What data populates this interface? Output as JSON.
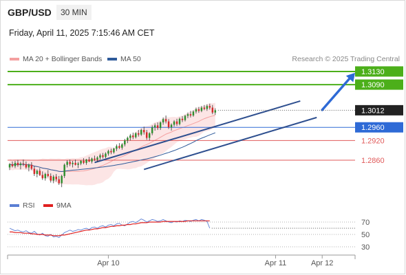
{
  "header": {
    "symbol": "GBP/USD",
    "timeframe": "30 MIN",
    "datetime": "Friday, April 11, 2025 7:15:46 AM CET"
  },
  "legend": {
    "ma_bb": {
      "label": "MA 20 + Bollinger Bands",
      "color": "#f4a0a0"
    },
    "ma50": {
      "label": "MA 50",
      "color": "#2e5a9a"
    },
    "credit": "Research © 2025 Trading Central"
  },
  "rsi_legend": {
    "rsi": {
      "label": "RSI",
      "color": "#5b7fd4"
    },
    "ma9": {
      "label": "9MA",
      "color": "#e02020"
    }
  },
  "chart_data": [
    {
      "type": "candlestick",
      "panel": "price",
      "ylim": [
        1.2745,
        1.3155
      ],
      "x_ticks": [
        {
          "label": "Apr 10",
          "index": 36
        },
        {
          "label": "Apr 11",
          "index": 97
        },
        {
          "label": "Apr 12",
          "index": 114
        }
      ],
      "n_slots": 127,
      "last_price": {
        "label": "1.3012",
        "value": 1.3012,
        "color": "#222222"
      },
      "levels": [
        {
          "label": "1.3130",
          "value": 1.313,
          "color": "#4caf1a",
          "style": "solid"
        },
        {
          "label": "1.3090",
          "value": 1.309,
          "color": "#4caf1a",
          "style": "solid"
        },
        {
          "label": "1.2960",
          "value": 1.296,
          "color": "#2e6ad6",
          "style": "thin"
        },
        {
          "label": "1.2920",
          "value": 1.292,
          "color": "#e05a5a",
          "style": "thin"
        },
        {
          "label": "1.2860",
          "value": 1.286,
          "color": "#e05a5a",
          "style": "thin"
        }
      ],
      "channel": {
        "upper": [
          [
            31,
            1.2853
          ],
          [
            106,
            1.304
          ]
        ],
        "lower": [
          [
            49,
            1.2832
          ],
          [
            112,
            1.299
          ]
        ],
        "color": "#2e4f8f"
      },
      "projection_arrow": {
        "from": [
          114,
          1.3013
        ],
        "to": [
          126,
          1.3126
        ],
        "color": "#2e6ad6"
      },
      "candles": [
        [
          1.2838,
          1.2851,
          1.283,
          1.2848
        ],
        [
          1.2848,
          1.2856,
          1.2838,
          1.2842
        ],
        [
          1.2842,
          1.2858,
          1.2836,
          1.2852
        ],
        [
          1.2852,
          1.2861,
          1.284,
          1.2845
        ],
        [
          1.2845,
          1.2855,
          1.2832,
          1.285
        ],
        [
          1.285,
          1.2862,
          1.2842,
          1.2848
        ],
        [
          1.2848,
          1.2856,
          1.2834,
          1.2838
        ],
        [
          1.2838,
          1.285,
          1.2826,
          1.2846
        ],
        [
          1.2846,
          1.2854,
          1.283,
          1.2834
        ],
        [
          1.2834,
          1.2842,
          1.2812,
          1.2818
        ],
        [
          1.2818,
          1.2832,
          1.2808,
          1.2828
        ],
        [
          1.2828,
          1.2836,
          1.2812,
          1.2815
        ],
        [
          1.2815,
          1.2826,
          1.28,
          1.2805
        ],
        [
          1.2805,
          1.2822,
          1.2798,
          1.2818
        ],
        [
          1.2818,
          1.283,
          1.2808,
          1.2812
        ],
        [
          1.2812,
          1.282,
          1.2792,
          1.2798
        ],
        [
          1.2798,
          1.2815,
          1.279,
          1.281
        ],
        [
          1.281,
          1.2818,
          1.2795,
          1.2802
        ],
        [
          1.2802,
          1.2812,
          1.2785,
          1.279
        ],
        [
          1.279,
          1.2816,
          1.2778,
          1.2812
        ],
        [
          1.2812,
          1.285,
          1.2806,
          1.2846
        ],
        [
          1.2846,
          1.286,
          1.2838,
          1.2855
        ],
        [
          1.2855,
          1.2862,
          1.2842,
          1.2848
        ],
        [
          1.2848,
          1.2858,
          1.2838,
          1.2852
        ],
        [
          1.2852,
          1.2862,
          1.2844,
          1.2846
        ],
        [
          1.2846,
          1.2855,
          1.2836,
          1.285
        ],
        [
          1.285,
          1.286,
          1.2845,
          1.2858
        ],
        [
          1.2858,
          1.2866,
          1.2848,
          1.2852
        ],
        [
          1.2852,
          1.2864,
          1.2846,
          1.2862
        ],
        [
          1.2862,
          1.287,
          1.2854,
          1.2856
        ],
        [
          1.2856,
          1.2868,
          1.285,
          1.2865
        ],
        [
          1.2865,
          1.2874,
          1.2858,
          1.2862
        ],
        [
          1.2862,
          1.2872,
          1.2855,
          1.2868
        ],
        [
          1.2868,
          1.288,
          1.2862,
          1.2875
        ],
        [
          1.2875,
          1.2882,
          1.2865,
          1.287
        ],
        [
          1.287,
          1.2884,
          1.2866,
          1.288
        ],
        [
          1.288,
          1.2892,
          1.2874,
          1.2888
        ],
        [
          1.2888,
          1.2895,
          1.2878,
          1.2884
        ],
        [
          1.2884,
          1.2898,
          1.288,
          1.2895
        ],
        [
          1.2895,
          1.2908,
          1.2888,
          1.2903
        ],
        [
          1.2903,
          1.2912,
          1.2894,
          1.2898
        ],
        [
          1.2898,
          1.2912,
          1.2892,
          1.2908
        ],
        [
          1.2908,
          1.2925,
          1.2902,
          1.292
        ],
        [
          1.292,
          1.2932,
          1.2912,
          1.2928
        ],
        [
          1.2928,
          1.294,
          1.292,
          1.2935
        ],
        [
          1.2935,
          1.2944,
          1.2924,
          1.293
        ],
        [
          1.293,
          1.2945,
          1.2926,
          1.2942
        ],
        [
          1.2942,
          1.2952,
          1.2932,
          1.2938
        ],
        [
          1.2938,
          1.2956,
          1.2934,
          1.2952
        ],
        [
          1.2952,
          1.2962,
          1.2938,
          1.2945
        ],
        [
          1.2945,
          1.2952,
          1.2922,
          1.2928
        ],
        [
          1.2928,
          1.2945,
          1.292,
          1.2942
        ],
        [
          1.2942,
          1.2966,
          1.2936,
          1.296
        ],
        [
          1.296,
          1.2972,
          1.295,
          1.2966
        ],
        [
          1.2966,
          1.2975,
          1.2952,
          1.2958
        ],
        [
          1.2958,
          1.2978,
          1.2952,
          1.2975
        ],
        [
          1.2975,
          1.299,
          1.2968,
          1.2985
        ],
        [
          1.2985,
          1.2996,
          1.2972,
          1.2978
        ],
        [
          1.2978,
          1.2985,
          1.2955,
          1.296
        ],
        [
          1.296,
          1.2972,
          1.295,
          1.2968
        ],
        [
          1.2968,
          1.2982,
          1.2962,
          1.2978
        ],
        [
          1.2978,
          1.2986,
          1.2964,
          1.297
        ],
        [
          1.297,
          1.299,
          1.2966,
          1.2986
        ],
        [
          1.2986,
          1.2994,
          1.2976,
          1.2982
        ],
        [
          1.2982,
          1.2998,
          1.2978,
          1.2995
        ],
        [
          1.2995,
          1.3005,
          1.2988,
          1.3
        ],
        [
          1.3,
          1.301,
          1.299,
          1.2996
        ],
        [
          1.2996,
          1.3012,
          1.2992,
          1.3008
        ],
        [
          1.3008,
          1.302,
          1.3002,
          1.3015
        ],
        [
          1.3015,
          1.3022,
          1.3004,
          1.301
        ],
        [
          1.301,
          1.3025,
          1.3006,
          1.302
        ],
        [
          1.302,
          1.3028,
          1.3012,
          1.3016
        ],
        [
          1.3016,
          1.303,
          1.301,
          1.3025
        ],
        [
          1.3025,
          1.3032,
          1.3014,
          1.302
        ],
        [
          1.302,
          1.3028,
          1.3,
          1.3005
        ],
        [
          1.3005,
          1.3018,
          1.2998,
          1.3012
        ]
      ]
    },
    {
      "type": "line",
      "panel": "rsi",
      "ylim": [
        20,
        80
      ],
      "y_ticks": [
        {
          "label": "70",
          "value": 70
        },
        {
          "label": "50",
          "value": 50
        },
        {
          "label": "30",
          "value": 30
        }
      ],
      "series": [
        {
          "name": "RSI",
          "color": "#5b7fd4",
          "values": [
            60,
            58,
            56,
            57,
            55,
            54,
            56,
            53,
            52,
            55,
            51,
            49,
            52,
            48,
            47,
            50,
            46,
            47,
            45,
            49,
            53,
            55,
            57,
            55,
            56,
            58,
            57,
            59,
            60,
            58,
            61,
            62,
            60,
            63,
            64,
            62,
            65,
            66,
            64,
            67,
            68,
            65,
            64,
            67,
            70,
            71,
            69,
            72,
            75,
            73,
            70,
            72,
            74,
            73,
            71,
            72,
            74,
            72,
            70,
            69,
            71,
            70,
            72,
            71,
            73,
            72,
            71,
            73,
            74,
            72,
            74,
            73,
            71,
            60
          ]
        },
        {
          "name": "9MA",
          "color": "#e02020",
          "values": [
            54,
            54,
            53,
            53,
            53,
            52,
            52,
            52,
            51,
            51,
            50,
            50,
            50,
            49,
            49,
            49,
            48,
            48,
            48,
            49,
            49,
            50,
            51,
            52,
            53,
            54,
            55,
            56,
            57,
            57,
            58,
            59,
            59,
            60,
            61,
            61,
            62,
            63,
            63,
            64,
            64,
            65,
            65,
            66,
            66,
            67,
            67,
            68,
            69,
            69,
            69,
            70,
            70,
            70,
            70,
            70,
            71,
            71,
            71,
            71,
            71,
            71,
            71,
            71,
            71,
            72,
            72,
            72,
            72,
            72,
            72,
            72,
            72,
            72
          ]
        }
      ]
    }
  ]
}
